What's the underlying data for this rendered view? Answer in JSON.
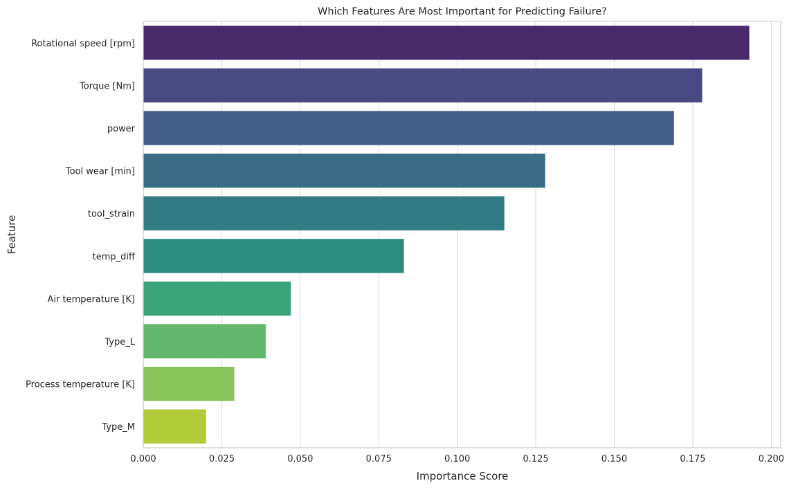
{
  "chart_data": {
    "type": "bar",
    "orientation": "horizontal",
    "title": "Which Features Are Most Important for Predicting Failure?",
    "xlabel": "Importance Score",
    "ylabel": "Feature",
    "xlim": [
      0,
      0.203
    ],
    "xticks": [
      "0.000",
      "0.025",
      "0.050",
      "0.075",
      "0.100",
      "0.125",
      "0.150",
      "0.175",
      "0.200"
    ],
    "grid": "vertical",
    "legend": "none",
    "categories": [
      "Rotational speed [rpm]",
      "Torque [Nm]",
      "power",
      "Tool wear [min]",
      "tool_strain",
      "temp_diff",
      "Air temperature [K]",
      "Type_L",
      "Process temperature [K]",
      "Type_M"
    ],
    "values": [
      0.193,
      0.178,
      0.169,
      0.128,
      0.115,
      0.083,
      0.047,
      0.039,
      0.029,
      0.02
    ],
    "colors": [
      "#482A6B",
      "#4A4A82",
      "#425C89",
      "#3A6D85",
      "#317C83",
      "#2E8C7E",
      "#3DA37A",
      "#62B76D",
      "#89C45A",
      "#B1CB39"
    ]
  }
}
